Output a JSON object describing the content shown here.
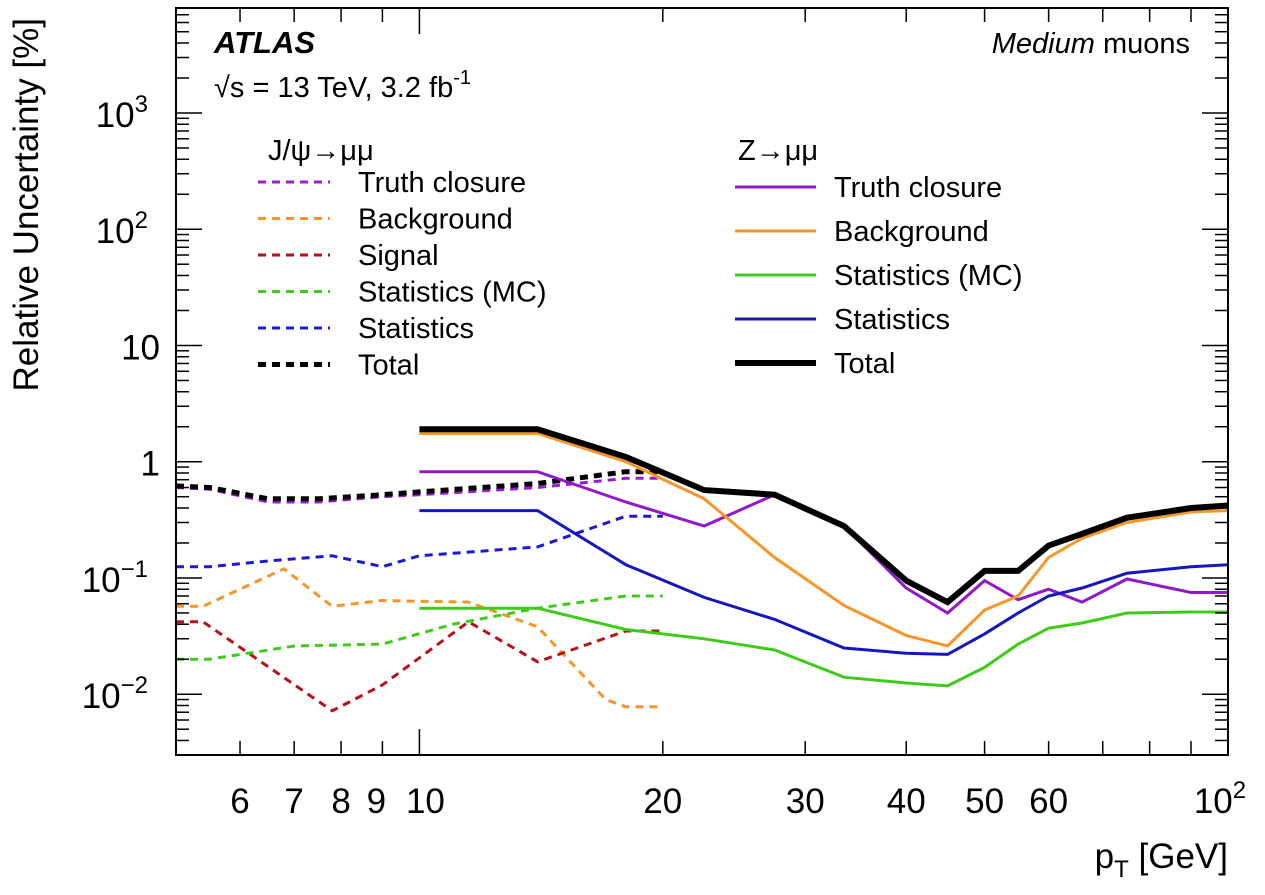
{
  "chart_data": {
    "type": "line",
    "xscale": "log",
    "yscale": "log",
    "xlim": [
      5,
      100
    ],
    "ylim": [
      0.003,
      8000
    ],
    "xlabel": "p",
    "xlabel_sub": "T",
    "xlabel_unit": " [GeV]",
    "ylabel": "Relative Uncertainty [%]",
    "x_ticks": [
      {
        "v": 6,
        "label": "6"
      },
      {
        "v": 7,
        "label": "7"
      },
      {
        "v": 8,
        "label": "8"
      },
      {
        "v": 9,
        "label": "9"
      },
      {
        "v": 10,
        "label": "10"
      },
      {
        "v": 20,
        "label": "20"
      },
      {
        "v": 30,
        "label": "30"
      },
      {
        "v": 40,
        "label": "40"
      },
      {
        "v": 50,
        "label": "50"
      },
      {
        "v": 60,
        "label": "60"
      },
      {
        "v": 100,
        "label": "10",
        "sup": "2"
      }
    ],
    "y_ticks": [
      {
        "v": 0.01,
        "label": "10",
        "sup": "−2"
      },
      {
        "v": 0.1,
        "label": "10",
        "sup": "−1"
      },
      {
        "v": 1,
        "label": "1"
      },
      {
        "v": 10,
        "label": "10"
      },
      {
        "v": 100,
        "label": "10",
        "sup": "2"
      },
      {
        "v": 1000,
        "label": "10",
        "sup": "3"
      }
    ],
    "experiment": "ATLAS",
    "energy_text": "√s = 13 TeV, 3.2 fb",
    "energy_sup": "-1",
    "selection_italic": "Medium",
    "selection_rest": " muons",
    "groups": [
      {
        "title": "J/ψ→μμ"
      },
      {
        "title": "Z→μμ"
      }
    ],
    "series": [
      {
        "name": "Truth closure",
        "group": 0,
        "style": "dashed",
        "color": "#a01ad6",
        "width": 3,
        "x": [
          5,
          5.5,
          6.5,
          7.5,
          9,
          10,
          14,
          18,
          20
        ],
        "y": [
          0.6,
          0.58,
          0.45,
          0.45,
          0.5,
          0.52,
          0.6,
          0.72,
          0.72
        ]
      },
      {
        "name": "Background",
        "group": 0,
        "style": "dashed",
        "color": "#f6962a",
        "width": 3,
        "x": [
          5,
          5.4,
          6.8,
          7.8,
          9,
          10,
          11.5,
          14,
          17,
          18,
          20
        ],
        "y": [
          0.057,
          0.057,
          0.12,
          0.057,
          0.064,
          0.063,
          0.062,
          0.038,
          0.009,
          0.0078,
          0.0078
        ]
      },
      {
        "name": "Signal",
        "group": 0,
        "style": "dashed",
        "color": "#b5121b",
        "width": 3,
        "x": [
          5,
          5.4,
          7.8,
          9,
          11.5,
          14,
          18,
          20
        ],
        "y": [
          0.042,
          0.042,
          0.0072,
          0.012,
          0.042,
          0.019,
          0.035,
          0.035
        ]
      },
      {
        "name": "Statistics (MC)",
        "group": 0,
        "style": "dashed",
        "color": "#3ecb1a",
        "width": 3,
        "x": [
          5,
          5.5,
          7,
          9,
          11,
          14,
          18,
          20
        ],
        "y": [
          0.02,
          0.02,
          0.026,
          0.027,
          0.04,
          0.055,
          0.07,
          0.07
        ]
      },
      {
        "name": "Statistics",
        "group": 0,
        "style": "dashed",
        "color": "#1a1ad6",
        "width": 3,
        "x": [
          5,
          5.5,
          6.5,
          7.8,
          9,
          10,
          14,
          18,
          20
        ],
        "y": [
          0.125,
          0.125,
          0.14,
          0.155,
          0.125,
          0.155,
          0.185,
          0.34,
          0.34
        ]
      },
      {
        "name": "Total",
        "group": 0,
        "style": "dashed",
        "color": "#000000",
        "width": 5,
        "x": [
          5,
          5.5,
          6.5,
          7.5,
          9,
          10,
          14,
          18,
          20
        ],
        "y": [
          0.62,
          0.6,
          0.48,
          0.48,
          0.52,
          0.55,
          0.65,
          0.82,
          0.82
        ]
      },
      {
        "name": "Truth closure",
        "group": 1,
        "style": "solid",
        "color": "#9219c7",
        "width": 3,
        "x": [
          10,
          14,
          14,
          18,
          22.5,
          27.5,
          33.5,
          40,
          45,
          50,
          55,
          60,
          66,
          75,
          90,
          100
        ],
        "y": [
          0.82,
          0.82,
          0.82,
          0.45,
          0.28,
          0.52,
          0.28,
          0.082,
          0.05,
          0.095,
          0.065,
          0.08,
          0.062,
          0.098,
          0.075,
          0.075
        ]
      },
      {
        "name": "Background",
        "group": 1,
        "style": "solid",
        "color": "#f6962a",
        "width": 3,
        "x": [
          10,
          14,
          18,
          22.5,
          27.5,
          33.5,
          40,
          45,
          50,
          55,
          60,
          66,
          75,
          90,
          100
        ],
        "y": [
          1.75,
          1.75,
          1.0,
          0.48,
          0.15,
          0.058,
          0.032,
          0.026,
          0.053,
          0.07,
          0.15,
          0.22,
          0.3,
          0.37,
          0.38
        ]
      },
      {
        "name": "Statistics (MC)",
        "group": 1,
        "style": "solid",
        "color": "#3ecb1a",
        "width": 3,
        "x": [
          10,
          14,
          18,
          22.5,
          27.5,
          33.5,
          40,
          45,
          50,
          55,
          60,
          66,
          75,
          90,
          100
        ],
        "y": [
          0.055,
          0.055,
          0.036,
          0.03,
          0.024,
          0.014,
          0.0125,
          0.0118,
          0.017,
          0.027,
          0.037,
          0.041,
          0.05,
          0.051,
          0.051
        ]
      },
      {
        "name": "Statistics",
        "group": 1,
        "style": "solid",
        "color": "#1616bd",
        "width": 3,
        "x": [
          10,
          14,
          18,
          22.5,
          27.5,
          33.5,
          40,
          45,
          50,
          55,
          60,
          66,
          75,
          90,
          100
        ],
        "y": [
          0.38,
          0.38,
          0.13,
          0.068,
          0.044,
          0.025,
          0.0225,
          0.022,
          0.033,
          0.05,
          0.07,
          0.082,
          0.11,
          0.125,
          0.13
        ]
      },
      {
        "name": "Total",
        "group": 1,
        "style": "solid",
        "color": "#000000",
        "width": 6,
        "x": [
          10,
          14,
          18,
          22.5,
          27.5,
          33.5,
          40,
          45,
          50,
          55,
          60,
          66,
          75,
          90,
          100
        ],
        "y": [
          1.9,
          1.9,
          1.1,
          0.57,
          0.52,
          0.28,
          0.095,
          0.062,
          0.115,
          0.115,
          0.19,
          0.24,
          0.33,
          0.4,
          0.42
        ]
      }
    ],
    "legend_placement": "top-left (J/ψ→μμ) and top-center (Z→μμ)",
    "grid": false
  }
}
